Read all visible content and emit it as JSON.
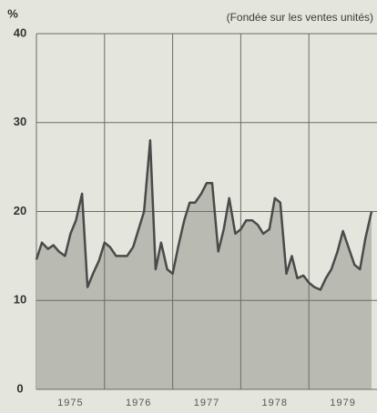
{
  "chart_data": {
    "type": "area",
    "subtitle": "(Fondée sur les ventes unités)",
    "ylabel": "%",
    "x": [
      1975,
      1975.08,
      1975.17,
      1975.25,
      1975.33,
      1975.42,
      1975.5,
      1975.58,
      1975.67,
      1975.75,
      1975.83,
      1975.92,
      1976,
      1976.08,
      1976.17,
      1976.25,
      1976.33,
      1976.42,
      1976.5,
      1976.58,
      1976.67,
      1976.75,
      1976.83,
      1976.92,
      1977,
      1977.08,
      1977.17,
      1977.25,
      1977.33,
      1977.42,
      1977.5,
      1977.58,
      1977.67,
      1977.75,
      1977.83,
      1977.92,
      1978,
      1978.08,
      1978.17,
      1978.25,
      1978.33,
      1978.42,
      1978.5,
      1978.58,
      1978.67,
      1978.75,
      1978.83,
      1978.92,
      1979,
      1979.08,
      1979.17,
      1979.25,
      1979.33,
      1979.42,
      1979.5,
      1979.58,
      1979.67,
      1979.75,
      1979.83,
      1979.92
    ],
    "values": [
      14.6,
      16.5,
      15.8,
      16.2,
      15.5,
      15,
      17.5,
      19,
      22,
      11.5,
      13,
      14.5,
      16.5,
      16,
      15,
      15,
      15,
      16,
      18,
      20,
      28,
      13.5,
      16.5,
      13.5,
      13,
      16,
      19,
      21,
      21,
      22,
      23.2,
      23.2,
      15.5,
      18,
      21.5,
      17.5,
      18,
      19,
      19,
      18.5,
      17.5,
      18,
      21.5,
      21,
      13,
      15,
      12.5,
      12.8,
      12,
      11.5,
      11.2,
      12.5,
      13.5,
      15.5,
      17.8,
      16,
      14,
      13.5,
      17,
      20
    ],
    "fill": "#b9bab1",
    "line_color": "#4a4a4a",
    "xlim": [
      1975,
      1980
    ],
    "xticks": [
      {
        "value": 1975.5,
        "label": "1975"
      },
      {
        "value": 1976.5,
        "label": "1976"
      },
      {
        "value": 1977.5,
        "label": "1977"
      },
      {
        "value": 1978.5,
        "label": "1978"
      },
      {
        "value": 1979.5,
        "label": "1979"
      }
    ],
    "xgrid": [
      1976,
      1977,
      1978,
      1979
    ],
    "ylim": [
      0,
      40
    ],
    "yticks": [
      0,
      10,
      20,
      30,
      40
    ],
    "grid": true
  }
}
